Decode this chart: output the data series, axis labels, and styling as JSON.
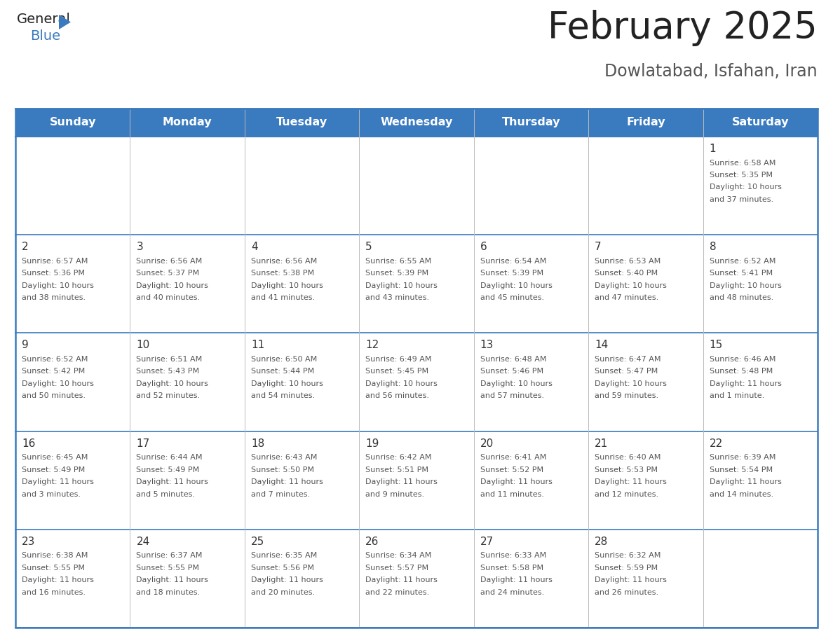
{
  "title": "February 2025",
  "subtitle": "Dowlatabad, Isfahan, Iran",
  "header_color": "#3a7abf",
  "header_text_color": "#ffffff",
  "cell_bg_color": "#ffffff",
  "border_color": "#3a7abf",
  "day_headers": [
    "Sunday",
    "Monday",
    "Tuesday",
    "Wednesday",
    "Thursday",
    "Friday",
    "Saturday"
  ],
  "calendar_data": [
    [
      null,
      null,
      null,
      null,
      null,
      null,
      {
        "day": 1,
        "sunrise": "6:58 AM",
        "sunset": "5:35 PM",
        "daylight_line1": "Daylight: 10 hours",
        "daylight_line2": "and 37 minutes."
      }
    ],
    [
      {
        "day": 2,
        "sunrise": "6:57 AM",
        "sunset": "5:36 PM",
        "daylight_line1": "Daylight: 10 hours",
        "daylight_line2": "and 38 minutes."
      },
      {
        "day": 3,
        "sunrise": "6:56 AM",
        "sunset": "5:37 PM",
        "daylight_line1": "Daylight: 10 hours",
        "daylight_line2": "and 40 minutes."
      },
      {
        "day": 4,
        "sunrise": "6:56 AM",
        "sunset": "5:38 PM",
        "daylight_line1": "Daylight: 10 hours",
        "daylight_line2": "and 41 minutes."
      },
      {
        "day": 5,
        "sunrise": "6:55 AM",
        "sunset": "5:39 PM",
        "daylight_line1": "Daylight: 10 hours",
        "daylight_line2": "and 43 minutes."
      },
      {
        "day": 6,
        "sunrise": "6:54 AM",
        "sunset": "5:39 PM",
        "daylight_line1": "Daylight: 10 hours",
        "daylight_line2": "and 45 minutes."
      },
      {
        "day": 7,
        "sunrise": "6:53 AM",
        "sunset": "5:40 PM",
        "daylight_line1": "Daylight: 10 hours",
        "daylight_line2": "and 47 minutes."
      },
      {
        "day": 8,
        "sunrise": "6:52 AM",
        "sunset": "5:41 PM",
        "daylight_line1": "Daylight: 10 hours",
        "daylight_line2": "and 48 minutes."
      }
    ],
    [
      {
        "day": 9,
        "sunrise": "6:52 AM",
        "sunset": "5:42 PM",
        "daylight_line1": "Daylight: 10 hours",
        "daylight_line2": "and 50 minutes."
      },
      {
        "day": 10,
        "sunrise": "6:51 AM",
        "sunset": "5:43 PM",
        "daylight_line1": "Daylight: 10 hours",
        "daylight_line2": "and 52 minutes."
      },
      {
        "day": 11,
        "sunrise": "6:50 AM",
        "sunset": "5:44 PM",
        "daylight_line1": "Daylight: 10 hours",
        "daylight_line2": "and 54 minutes."
      },
      {
        "day": 12,
        "sunrise": "6:49 AM",
        "sunset": "5:45 PM",
        "daylight_line1": "Daylight: 10 hours",
        "daylight_line2": "and 56 minutes."
      },
      {
        "day": 13,
        "sunrise": "6:48 AM",
        "sunset": "5:46 PM",
        "daylight_line1": "Daylight: 10 hours",
        "daylight_line2": "and 57 minutes."
      },
      {
        "day": 14,
        "sunrise": "6:47 AM",
        "sunset": "5:47 PM",
        "daylight_line1": "Daylight: 10 hours",
        "daylight_line2": "and 59 minutes."
      },
      {
        "day": 15,
        "sunrise": "6:46 AM",
        "sunset": "5:48 PM",
        "daylight_line1": "Daylight: 11 hours",
        "daylight_line2": "and 1 minute."
      }
    ],
    [
      {
        "day": 16,
        "sunrise": "6:45 AM",
        "sunset": "5:49 PM",
        "daylight_line1": "Daylight: 11 hours",
        "daylight_line2": "and 3 minutes."
      },
      {
        "day": 17,
        "sunrise": "6:44 AM",
        "sunset": "5:49 PM",
        "daylight_line1": "Daylight: 11 hours",
        "daylight_line2": "and 5 minutes."
      },
      {
        "day": 18,
        "sunrise": "6:43 AM",
        "sunset": "5:50 PM",
        "daylight_line1": "Daylight: 11 hours",
        "daylight_line2": "and 7 minutes."
      },
      {
        "day": 19,
        "sunrise": "6:42 AM",
        "sunset": "5:51 PM",
        "daylight_line1": "Daylight: 11 hours",
        "daylight_line2": "and 9 minutes."
      },
      {
        "day": 20,
        "sunrise": "6:41 AM",
        "sunset": "5:52 PM",
        "daylight_line1": "Daylight: 11 hours",
        "daylight_line2": "and 11 minutes."
      },
      {
        "day": 21,
        "sunrise": "6:40 AM",
        "sunset": "5:53 PM",
        "daylight_line1": "Daylight: 11 hours",
        "daylight_line2": "and 12 minutes."
      },
      {
        "day": 22,
        "sunrise": "6:39 AM",
        "sunset": "5:54 PM",
        "daylight_line1": "Daylight: 11 hours",
        "daylight_line2": "and 14 minutes."
      }
    ],
    [
      {
        "day": 23,
        "sunrise": "6:38 AM",
        "sunset": "5:55 PM",
        "daylight_line1": "Daylight: 11 hours",
        "daylight_line2": "and 16 minutes."
      },
      {
        "day": 24,
        "sunrise": "6:37 AM",
        "sunset": "5:55 PM",
        "daylight_line1": "Daylight: 11 hours",
        "daylight_line2": "and 18 minutes."
      },
      {
        "day": 25,
        "sunrise": "6:35 AM",
        "sunset": "5:56 PM",
        "daylight_line1": "Daylight: 11 hours",
        "daylight_line2": "and 20 minutes."
      },
      {
        "day": 26,
        "sunrise": "6:34 AM",
        "sunset": "5:57 PM",
        "daylight_line1": "Daylight: 11 hours",
        "daylight_line2": "and 22 minutes."
      },
      {
        "day": 27,
        "sunrise": "6:33 AM",
        "sunset": "5:58 PM",
        "daylight_line1": "Daylight: 11 hours",
        "daylight_line2": "and 24 minutes."
      },
      {
        "day": 28,
        "sunrise": "6:32 AM",
        "sunset": "5:59 PM",
        "daylight_line1": "Daylight: 11 hours",
        "daylight_line2": "and 26 minutes."
      },
      null
    ]
  ],
  "logo_general_color": "#222222",
  "logo_blue_color": "#3a7abf",
  "logo_triangle_color": "#3a7abf",
  "title_color": "#222222",
  "subtitle_color": "#555555",
  "day_number_color": "#333333",
  "cell_text_color": "#555555"
}
